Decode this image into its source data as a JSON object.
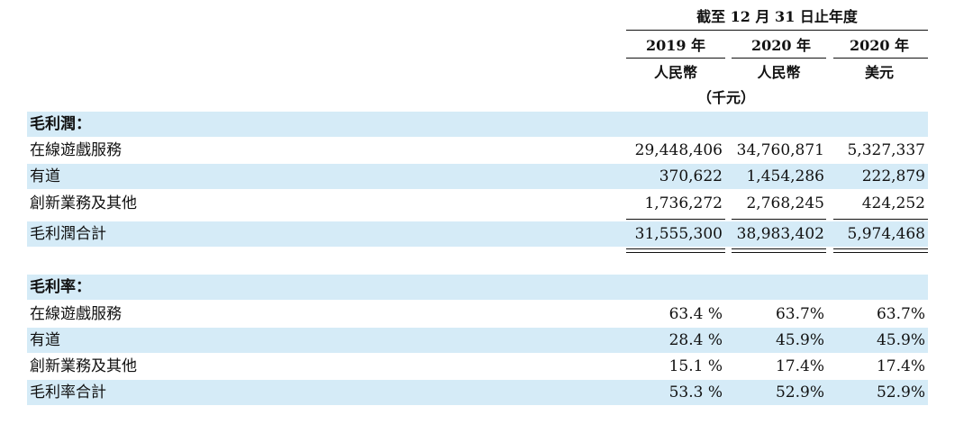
{
  "header": {
    "period": "截至 12 月 31 日止年度",
    "columns": [
      {
        "year": "2019 年",
        "currency": "人民幣"
      },
      {
        "year": "2020 年",
        "currency": "人民幣"
      },
      {
        "year": "2020 年",
        "currency": "美元"
      }
    ],
    "unit_note": "（千元）"
  },
  "gross_profit": {
    "title": "毛利潤：",
    "rows": [
      {
        "label": "在線遊戲服務",
        "values": [
          "29,448,406",
          "34,760,871",
          "5,327,337"
        ]
      },
      {
        "label": "有道",
        "values": [
          "370,622",
          "1,454,286",
          "222,879"
        ]
      },
      {
        "label": "創新業務及其他",
        "values": [
          "1,736,272",
          "2,768,245",
          "424,252"
        ]
      }
    ],
    "total": {
      "label": "毛利潤合計",
      "values": [
        "31,555,300",
        "38,983,402",
        "5,974,468"
      ]
    }
  },
  "gross_margin": {
    "title": "毛利率：",
    "rows": [
      {
        "label": "在線遊戲服務",
        "values": [
          "63.4 %",
          "63.7%",
          "63.7%"
        ]
      },
      {
        "label": "有道",
        "values": [
          "28.4 %",
          "45.9%",
          "45.9%"
        ]
      },
      {
        "label": "創新業務及其他",
        "values": [
          "15.1 %",
          "17.4%",
          "17.4%"
        ]
      },
      {
        "label": "毛利率合計",
        "values": [
          "53.3 %",
          "52.9%",
          "52.9%"
        ]
      }
    ]
  }
}
